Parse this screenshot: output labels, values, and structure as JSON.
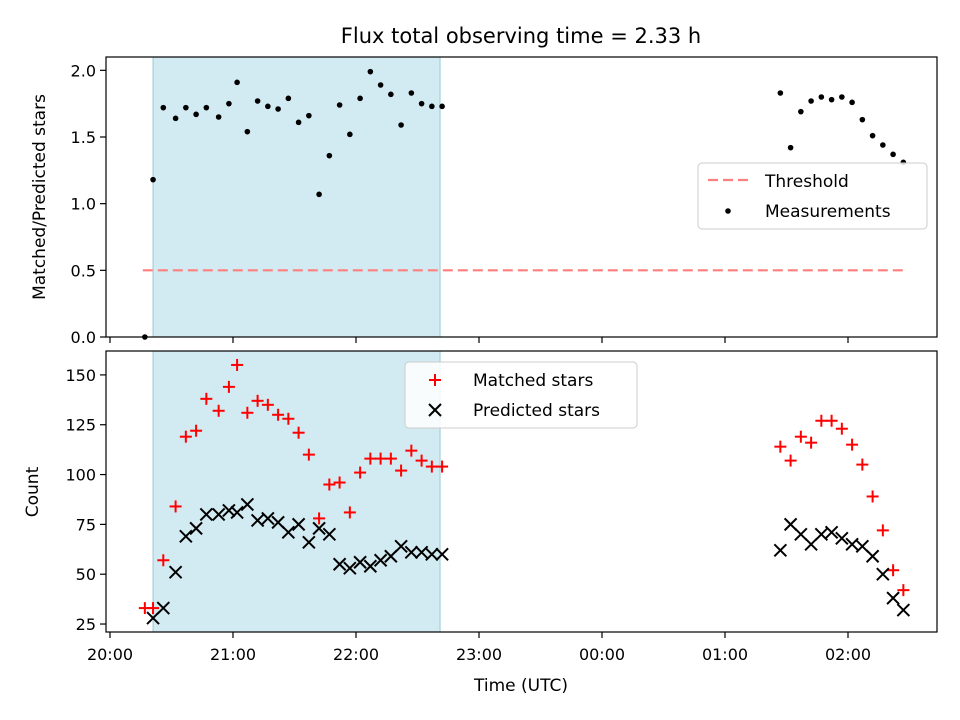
{
  "figure": {
    "title": "Flux total observing time = 2.33 h",
    "xlabel": "Time (UTC)"
  },
  "chart_data": [
    {
      "type": "scatter",
      "panel": "top",
      "title": "Flux total observing time = 2.33 h",
      "ylabel": "Matched/Predicted stars",
      "ylim": [
        0,
        2.1
      ],
      "yticks": [
        0.0,
        0.5,
        1.0,
        1.5,
        2.0
      ],
      "ytick_labels": [
        "0.0",
        "0.5",
        "1.0",
        "1.5",
        "2.0"
      ],
      "xlim": [
        "20:00",
        "02:45"
      ],
      "shaded_interval": [
        "20:21",
        "22:41"
      ],
      "shade_color": "#add8e6",
      "legend": {
        "placement": "center-right",
        "entries": [
          "Threshold",
          "Measurements"
        ]
      },
      "threshold": {
        "name": "Threshold",
        "y": 0.5,
        "x": [
          "20:16",
          "02:27"
        ],
        "color": "#ff7f7f",
        "style": "dashed"
      },
      "series": [
        {
          "name": "Measurements",
          "marker": "dot",
          "color": "#000000",
          "points": [
            [
              "20:17",
              0.0
            ],
            [
              "20:21",
              1.18
            ],
            [
              "20:26",
              1.72
            ],
            [
              "20:32",
              1.64
            ],
            [
              "20:37",
              1.72
            ],
            [
              "20:42",
              1.67
            ],
            [
              "20:47",
              1.72
            ],
            [
              "20:53",
              1.65
            ],
            [
              "20:58",
              1.75
            ],
            [
              "21:02",
              1.91
            ],
            [
              "21:07",
              1.54
            ],
            [
              "21:12",
              1.77
            ],
            [
              "21:17",
              1.73
            ],
            [
              "21:22",
              1.71
            ],
            [
              "21:27",
              1.79
            ],
            [
              "21:32",
              1.61
            ],
            [
              "21:37",
              1.66
            ],
            [
              "21:42",
              1.07
            ],
            [
              "21:47",
              1.36
            ],
            [
              "21:52",
              1.74
            ],
            [
              "21:57",
              1.52
            ],
            [
              "22:02",
              1.79
            ],
            [
              "22:07",
              1.99
            ],
            [
              "22:12",
              1.89
            ],
            [
              "22:17",
              1.82
            ],
            [
              "22:22",
              1.59
            ],
            [
              "22:27",
              1.83
            ],
            [
              "22:32",
              1.75
            ],
            [
              "22:37",
              1.73
            ],
            [
              "22:42",
              1.73
            ],
            [
              "01:27",
              1.83
            ],
            [
              "01:32",
              1.42
            ],
            [
              "01:37",
              1.69
            ],
            [
              "01:42",
              1.77
            ],
            [
              "01:47",
              1.8
            ],
            [
              "01:52",
              1.78
            ],
            [
              "01:57",
              1.8
            ],
            [
              "02:02",
              1.76
            ],
            [
              "02:07",
              1.63
            ],
            [
              "02:12",
              1.51
            ],
            [
              "02:17",
              1.44
            ],
            [
              "02:22",
              1.37
            ],
            [
              "02:27",
              1.31
            ]
          ]
        }
      ]
    },
    {
      "type": "scatter",
      "panel": "bottom",
      "xlabel": "Time (UTC)",
      "ylabel": "Count",
      "ylim": [
        21,
        162
      ],
      "yticks": [
        25,
        50,
        75,
        100,
        125,
        150
      ],
      "ytick_labels": [
        "25",
        "50",
        "75",
        "100",
        "125",
        "150"
      ],
      "xlim": [
        "20:00",
        "02:45"
      ],
      "xticks": [
        "20:00",
        "21:00",
        "22:00",
        "23:00",
        "00:00",
        "01:00",
        "02:00"
      ],
      "xtick_labels": [
        "20:00",
        "21:00",
        "22:00",
        "23:00",
        "00:00",
        "01:00",
        "02:00"
      ],
      "shaded_interval": [
        "20:21",
        "22:41"
      ],
      "shade_color": "#add8e6",
      "legend": {
        "placement": "top-center",
        "entries": [
          "Matched stars",
          "Predicted stars"
        ]
      },
      "series": [
        {
          "name": "Matched stars",
          "marker": "plus",
          "color": "#ff0000",
          "points": [
            [
              "20:17",
              33
            ],
            [
              "20:21",
              33
            ],
            [
              "20:26",
              57
            ],
            [
              "20:32",
              84
            ],
            [
              "20:37",
              119
            ],
            [
              "20:42",
              122
            ],
            [
              "20:47",
              138
            ],
            [
              "20:53",
              132
            ],
            [
              "20:58",
              144
            ],
            [
              "21:02",
              155
            ],
            [
              "21:07",
              131
            ],
            [
              "21:12",
              137
            ],
            [
              "21:17",
              135
            ],
            [
              "21:22",
              130
            ],
            [
              "21:27",
              128
            ],
            [
              "21:32",
              121
            ],
            [
              "21:37",
              110
            ],
            [
              "21:42",
              78
            ],
            [
              "21:47",
              95
            ],
            [
              "21:52",
              96
            ],
            [
              "21:57",
              81
            ],
            [
              "22:02",
              101
            ],
            [
              "22:07",
              108
            ],
            [
              "22:12",
              108
            ],
            [
              "22:17",
              108
            ],
            [
              "22:22",
              102
            ],
            [
              "22:27",
              112
            ],
            [
              "22:32",
              107
            ],
            [
              "22:37",
              104
            ],
            [
              "22:42",
              104
            ],
            [
              "01:27",
              114
            ],
            [
              "01:32",
              107
            ],
            [
              "01:37",
              119
            ],
            [
              "01:42",
              116
            ],
            [
              "01:47",
              127
            ],
            [
              "01:52",
              127
            ],
            [
              "01:57",
              123
            ],
            [
              "02:02",
              115
            ],
            [
              "02:07",
              105
            ],
            [
              "02:12",
              89
            ],
            [
              "02:17",
              72
            ],
            [
              "02:22",
              52
            ],
            [
              "02:27",
              42
            ]
          ]
        },
        {
          "name": "Predicted stars",
          "marker": "x",
          "color": "#000000",
          "points": [
            [
              "20:21",
              28
            ],
            [
              "20:26",
              33
            ],
            [
              "20:32",
              51
            ],
            [
              "20:37",
              69
            ],
            [
              "20:42",
              73
            ],
            [
              "20:47",
              80
            ],
            [
              "20:53",
              80
            ],
            [
              "20:58",
              82
            ],
            [
              "21:02",
              81
            ],
            [
              "21:07",
              85
            ],
            [
              "21:12",
              77
            ],
            [
              "21:17",
              78
            ],
            [
              "21:22",
              76
            ],
            [
              "21:27",
              71
            ],
            [
              "21:32",
              75
            ],
            [
              "21:37",
              66
            ],
            [
              "21:42",
              73
            ],
            [
              "21:47",
              70
            ],
            [
              "21:52",
              55
            ],
            [
              "21:57",
              53
            ],
            [
              "22:02",
              56
            ],
            [
              "22:07",
              54
            ],
            [
              "22:12",
              57
            ],
            [
              "22:17",
              59
            ],
            [
              "22:22",
              64
            ],
            [
              "22:27",
              61
            ],
            [
              "22:32",
              61
            ],
            [
              "22:37",
              60
            ],
            [
              "22:42",
              60
            ],
            [
              "01:27",
              62
            ],
            [
              "01:32",
              75
            ],
            [
              "01:37",
              70
            ],
            [
              "01:42",
              65
            ],
            [
              "01:47",
              70
            ],
            [
              "01:52",
              71
            ],
            [
              "01:57",
              68
            ],
            [
              "02:02",
              65
            ],
            [
              "02:07",
              64
            ],
            [
              "02:12",
              59
            ],
            [
              "02:17",
              50
            ],
            [
              "02:22",
              38
            ],
            [
              "02:27",
              32
            ]
          ]
        }
      ]
    }
  ]
}
